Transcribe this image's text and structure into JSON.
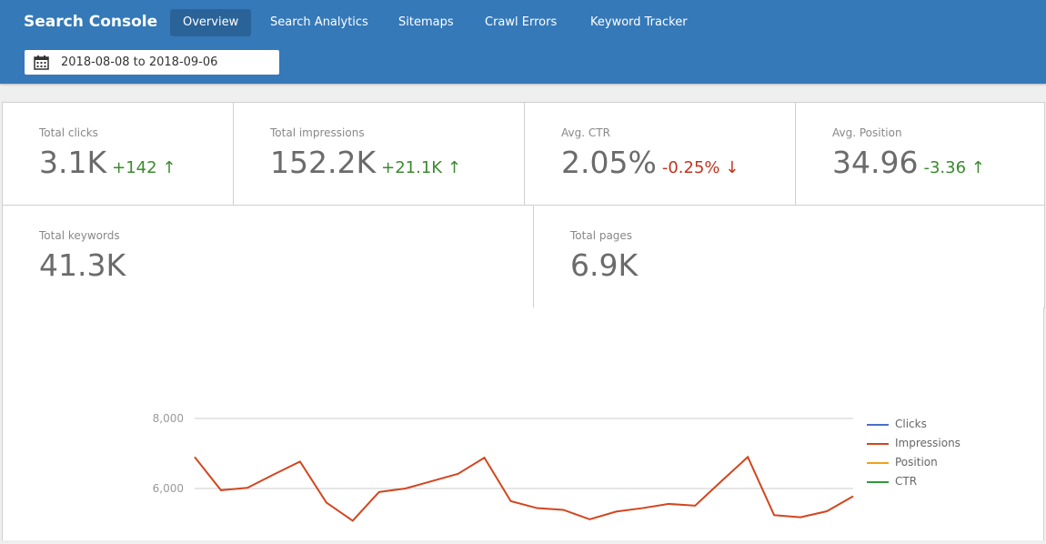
{
  "header": {
    "title": "Search Console",
    "tabs": [
      {
        "label": "Overview",
        "active": true
      },
      {
        "label": "Search Analytics"
      },
      {
        "label": "Sitemaps"
      },
      {
        "label": "Crawl Errors"
      },
      {
        "label": "Keyword Tracker"
      }
    ],
    "date_range": "2018-08-08 to 2018-09-06",
    "date_icon": "calendar-icon"
  },
  "stats": [
    {
      "label": "Total clicks",
      "value": "3.1K",
      "delta": "+142",
      "trend": "up"
    },
    {
      "label": "Total impressions",
      "value": "152.2K",
      "delta": "+21.1K",
      "trend": "up"
    },
    {
      "label": "Avg. CTR",
      "value": "2.05%",
      "delta": "-0.25%",
      "trend": "down"
    },
    {
      "label": "Avg. Position",
      "value": "34.96",
      "delta": "-3.36",
      "trend": "up"
    },
    {
      "label": "Total keywords",
      "value": "41.3K"
    },
    {
      "label": "Total pages",
      "value": "6.9K"
    }
  ],
  "arrows": {
    "up": "↑",
    "down": "↓"
  },
  "colors": {
    "header": "#3579b8",
    "positive": "#3a8a2e",
    "negative": "#c0341d"
  },
  "chart_data": {
    "type": "line",
    "grid": true,
    "legend": "right",
    "yticks": [
      {
        "value": 8000,
        "label": "8,000"
      },
      {
        "value": 6000,
        "label": "6,000"
      }
    ],
    "series": [
      {
        "name": "Clicks",
        "color": "#4a6fc7",
        "values": []
      },
      {
        "name": "Impressions",
        "color": "#d2461f",
        "values": [
          6900,
          5950,
          6020,
          6400,
          6770,
          5600,
          5080,
          5900,
          6000,
          6210,
          6420,
          6880,
          5640,
          5440,
          5390,
          5120,
          5340,
          5440,
          5560,
          5510,
          6210,
          6900,
          5240,
          5180,
          5350,
          5780
        ]
      },
      {
        "name": "Position",
        "color": "#f2a31b",
        "values": []
      },
      {
        "name": "CTR",
        "color": "#2f9a3a",
        "values": []
      }
    ]
  }
}
